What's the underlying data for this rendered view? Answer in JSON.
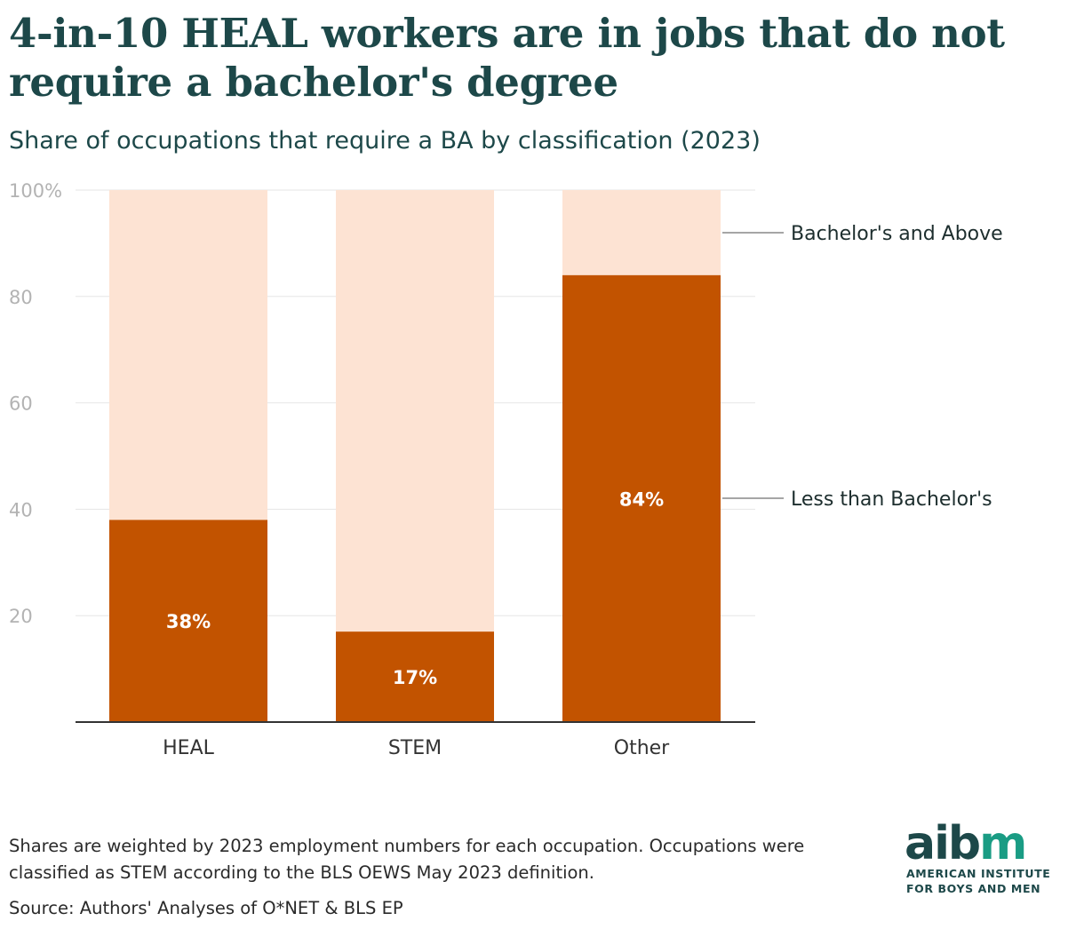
{
  "header": {
    "title": "4-in-10 HEAL workers are in jobs that do not require a bachelor's degree",
    "subtitle": "Share of occupations that require a BA by classification (2023)"
  },
  "chart_data": {
    "type": "bar",
    "stacked": true,
    "categories": [
      "HEAL",
      "STEM",
      "Other"
    ],
    "series": [
      {
        "name": "Less than Bachelor's",
        "values": [
          38,
          17,
          84
        ],
        "color": "#c25300",
        "data_labels": [
          "38%",
          "17%",
          "84%"
        ]
      },
      {
        "name": "Bachelor's and Above",
        "values": [
          62,
          83,
          16
        ],
        "color": "#fde3d3"
      }
    ],
    "ylim": [
      0,
      100
    ],
    "yticks": [
      20,
      40,
      60,
      80,
      100
    ],
    "ytick_labels": [
      "20",
      "40",
      "60",
      "80",
      "100%"
    ],
    "grid": true,
    "legend": "right, direct labels"
  },
  "footer": {
    "note": "Shares are weighted by 2023 employment numbers for each occupation. Occupations were classified as STEM according to the BLS OEWS May 2023 definition.",
    "source": "Source: Authors' Analyses of O*NET & BLS EP"
  },
  "logo": {
    "word_a": "aib",
    "word_b": "m",
    "line1": "AMERICAN INSTITUTE",
    "line2": "FOR BOYS AND MEN",
    "color_dark": "#1d4849",
    "color_accent": "#1a9c84"
  }
}
